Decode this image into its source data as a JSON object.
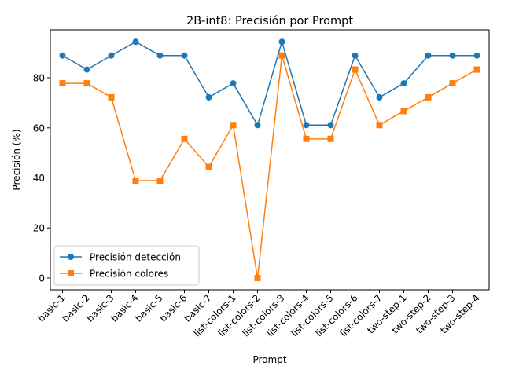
{
  "chart_data": {
    "type": "line",
    "title": "2B-int8: Precisión por Prompt",
    "xlabel": "Prompt",
    "ylabel": "Precisión (%)",
    "categories": [
      "basic-1",
      "basic-2",
      "basic-3",
      "basic-4",
      "basic-5",
      "basic-6",
      "basic-7",
      "list-colors-1",
      "list-colors-2",
      "list-colors-3",
      "list-colors-4",
      "list-colors-5",
      "list-colors-6",
      "list-colors-7",
      "two-step-1",
      "two-step-2",
      "two-step-3",
      "two-step-4"
    ],
    "yticks": [
      0,
      20,
      40,
      60,
      80
    ],
    "ylim": [
      -4.72,
      99.17
    ],
    "grid": false,
    "legend": "lower-left",
    "series": [
      {
        "name": "Precisión detección",
        "color": "#1f77b4",
        "marker": "circle",
        "values": [
          88.9,
          83.3,
          88.9,
          94.4,
          88.9,
          88.9,
          72.2,
          77.8,
          61.1,
          94.4,
          61.1,
          61.1,
          88.9,
          72.2,
          77.8,
          88.9,
          88.9,
          88.9
        ]
      },
      {
        "name": "Precisión colores",
        "color": "#ff7f0e",
        "marker": "square",
        "values": [
          77.8,
          77.8,
          72.2,
          38.9,
          38.9,
          55.6,
          44.4,
          61.1,
          0.0,
          88.9,
          55.6,
          55.6,
          83.3,
          61.1,
          66.7,
          72.2,
          77.8,
          83.3
        ]
      }
    ]
  }
}
